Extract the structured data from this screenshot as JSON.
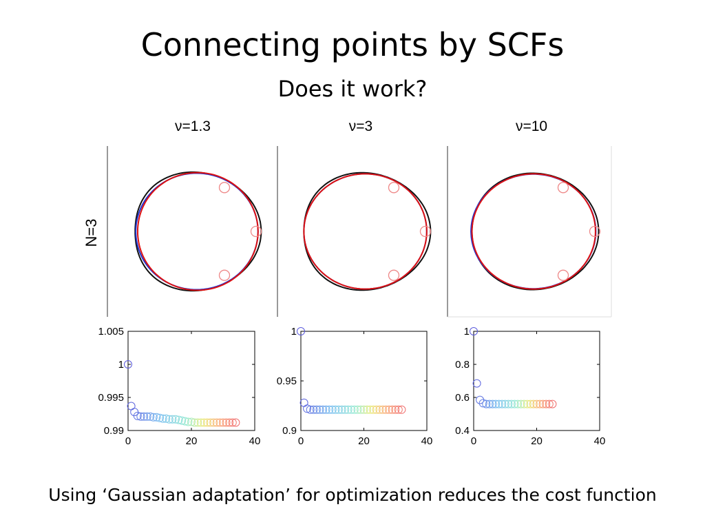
{
  "slide": {
    "title": "Connecting points by SCFs",
    "subtitle": "Does it work?",
    "caption": "Using ‘Gaussian adaptation’ for optimization reduces the cost function"
  },
  "row_label": "N=3",
  "colors": {
    "black_curve": "#111111",
    "blue_curve": "#2233cc",
    "red_curve": "#dd1111",
    "marker": "#ee8888",
    "panel_divider": "#999999"
  },
  "chart_data": [
    {
      "type": "line",
      "title": "ν=1.3",
      "curves": [
        "black",
        "blue",
        "red"
      ],
      "points": [
        [
          0.5,
          0.866
        ],
        [
          1.0,
          0.0
        ],
        [
          0.5,
          -0.866
        ]
      ]
    },
    {
      "type": "line",
      "title": "ν=3",
      "curves": [
        "black",
        "blue",
        "red"
      ],
      "points": [
        [
          0.5,
          0.866
        ],
        [
          1.0,
          0.0
        ],
        [
          0.5,
          -0.866
        ]
      ]
    },
    {
      "type": "line",
      "title": "ν=10",
      "curves": [
        "black",
        "blue",
        "red"
      ],
      "points": [
        [
          0.5,
          0.866
        ],
        [
          1.0,
          0.0
        ],
        [
          0.5,
          -0.866
        ]
      ]
    },
    {
      "type": "scatter",
      "xlim": [
        0,
        40
      ],
      "ylim": [
        0.99,
        1.005
      ],
      "xticks": [
        "0",
        "20",
        "40"
      ],
      "yticks": [
        "0.99",
        "0.995",
        "1",
        "1.005"
      ],
      "x": [
        0,
        1,
        2,
        3,
        4,
        5,
        6,
        7,
        8,
        9,
        10,
        11,
        12,
        13,
        14,
        15,
        16,
        17,
        18,
        19,
        20,
        21,
        22,
        23,
        24,
        25,
        26,
        27,
        28,
        29,
        30,
        31,
        32,
        33,
        34
      ],
      "y": [
        1.0,
        0.9937,
        0.9928,
        0.9922,
        0.9921,
        0.9921,
        0.9921,
        0.9921,
        0.992,
        0.992,
        0.9919,
        0.9918,
        0.9918,
        0.9917,
        0.9917,
        0.9917,
        0.9916,
        0.9915,
        0.9914,
        0.9913,
        0.9913,
        0.9912,
        0.9912,
        0.9912,
        0.9912,
        0.9912,
        0.9912,
        0.9912,
        0.9912,
        0.9912,
        0.9912,
        0.9912,
        0.9912,
        0.9912,
        0.9912
      ]
    },
    {
      "type": "scatter",
      "xlim": [
        0,
        40
      ],
      "ylim": [
        0.9,
        1.0
      ],
      "xticks": [
        "0",
        "20",
        "40"
      ],
      "yticks": [
        "0.9",
        "0.95",
        "1"
      ],
      "x": [
        0,
        1,
        2,
        3,
        4,
        5,
        6,
        7,
        8,
        9,
        10,
        11,
        12,
        13,
        14,
        15,
        16,
        17,
        18,
        19,
        20,
        21,
        22,
        23,
        24,
        25,
        26,
        27,
        28,
        29,
        30,
        31,
        32
      ],
      "y": [
        1.0,
        0.928,
        0.922,
        0.921,
        0.921,
        0.921,
        0.921,
        0.921,
        0.921,
        0.921,
        0.921,
        0.921,
        0.921,
        0.921,
        0.921,
        0.921,
        0.921,
        0.921,
        0.921,
        0.921,
        0.921,
        0.921,
        0.921,
        0.921,
        0.921,
        0.921,
        0.921,
        0.921,
        0.921,
        0.921,
        0.921,
        0.921,
        0.921
      ]
    },
    {
      "type": "scatter",
      "xlim": [
        0,
        40
      ],
      "ylim": [
        0.4,
        1.0
      ],
      "xticks": [
        "0",
        "20",
        "40"
      ],
      "yticks": [
        "0.4",
        "0.6",
        "0.8",
        "1"
      ],
      "x": [
        0,
        1,
        2,
        3,
        4,
        5,
        6,
        7,
        8,
        9,
        10,
        11,
        12,
        13,
        14,
        15,
        16,
        17,
        18,
        19,
        20,
        21,
        22,
        23,
        24,
        25
      ],
      "y": [
        1.0,
        0.685,
        0.585,
        0.565,
        0.56,
        0.56,
        0.56,
        0.56,
        0.56,
        0.56,
        0.56,
        0.56,
        0.56,
        0.56,
        0.56,
        0.56,
        0.56,
        0.56,
        0.56,
        0.56,
        0.56,
        0.56,
        0.56,
        0.56,
        0.56,
        0.56
      ]
    }
  ]
}
